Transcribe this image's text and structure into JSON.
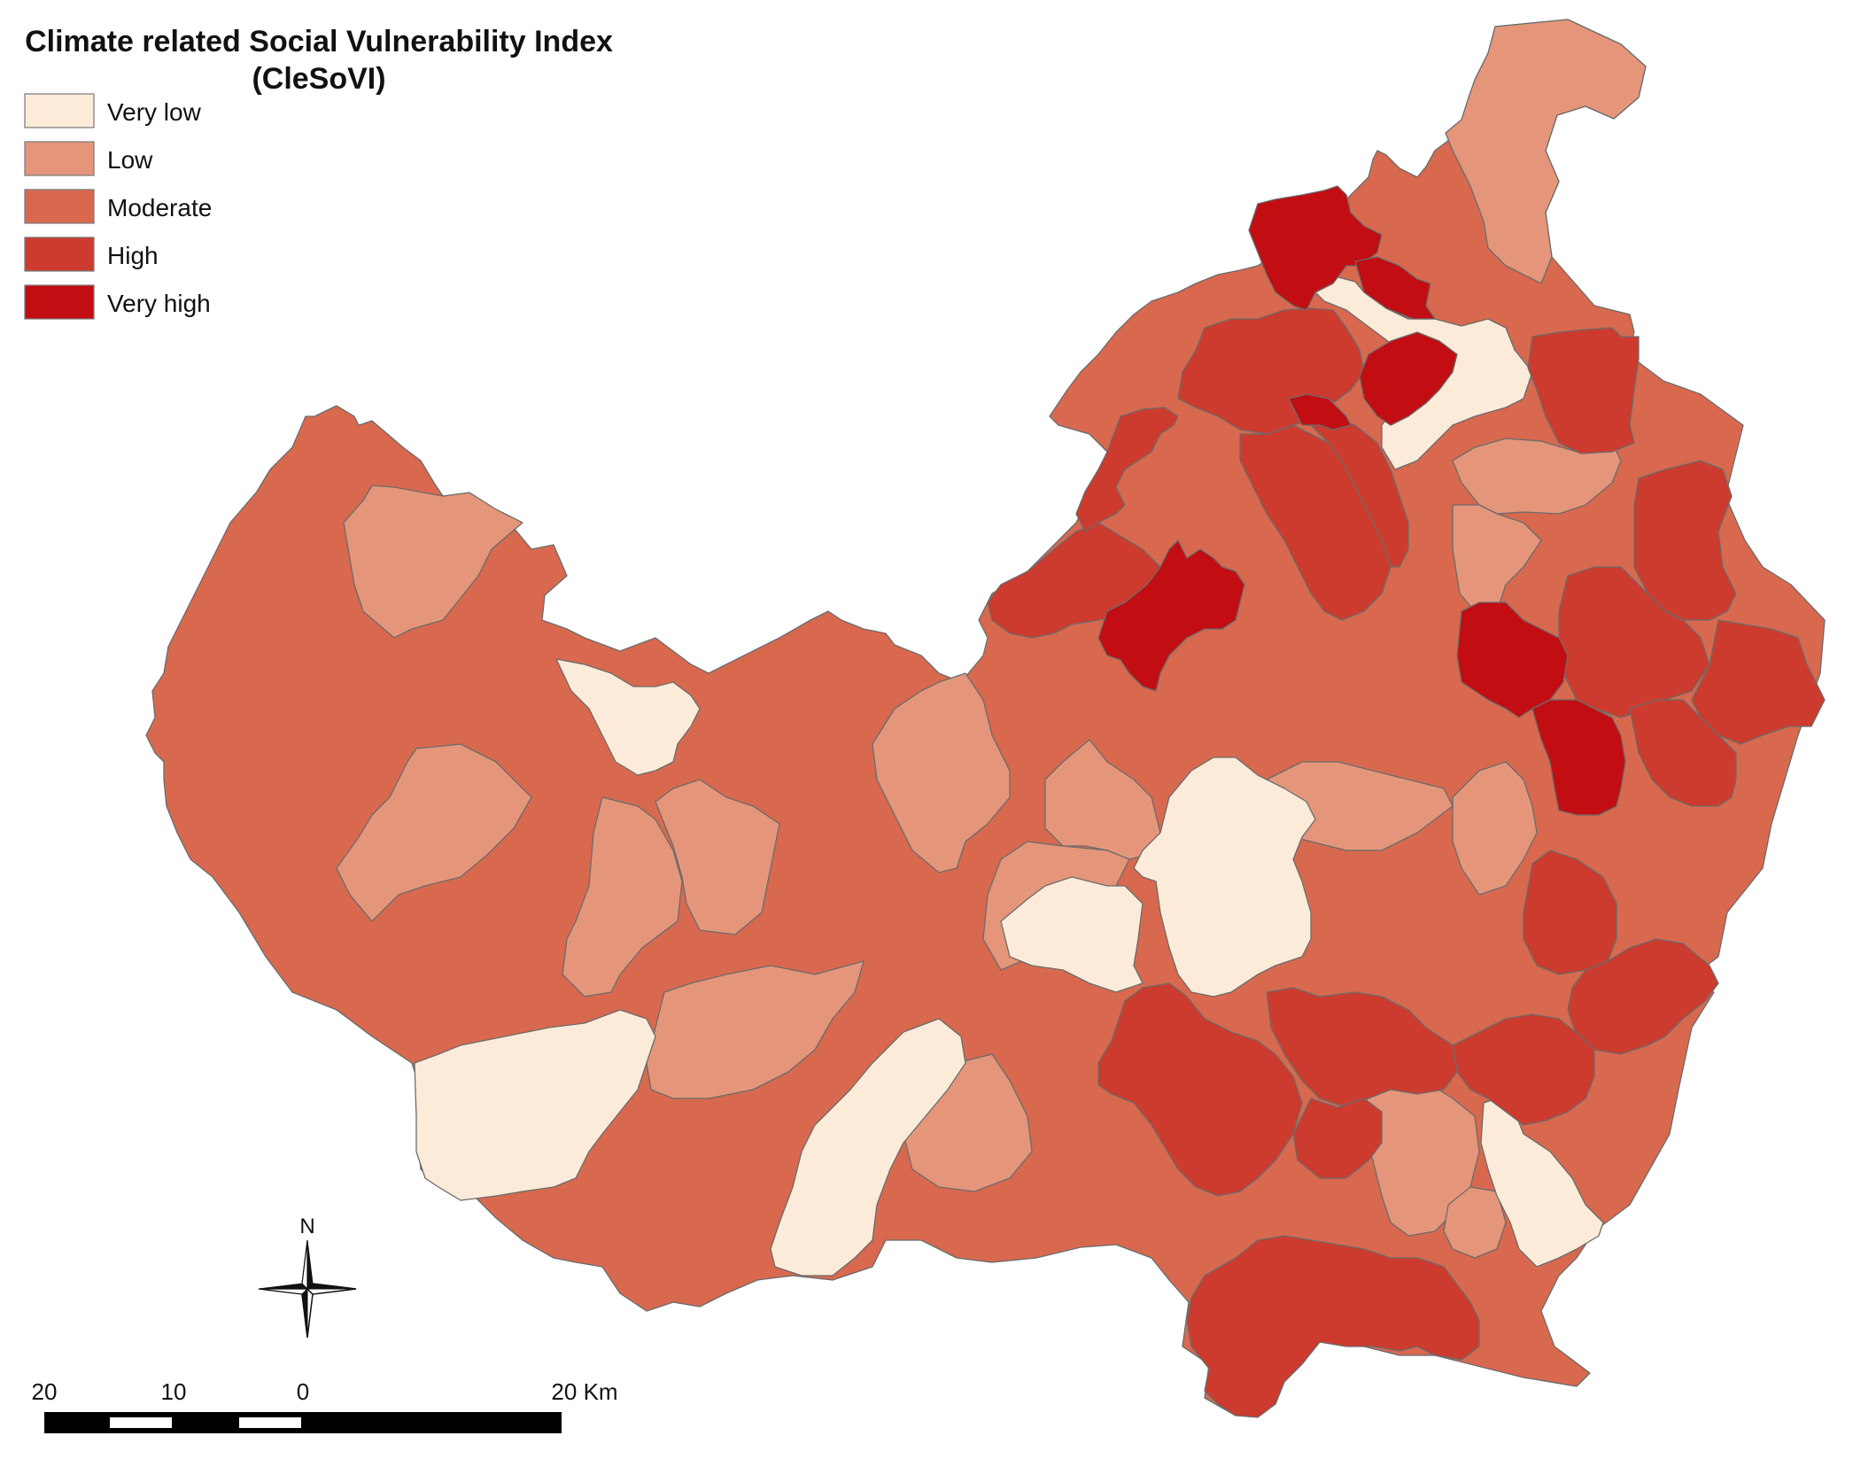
{
  "title_line1": "Climate related Social Vulnerability Index",
  "title_line2": "(CleSoVI)",
  "legend": [
    {
      "label": "Very low",
      "color": "#fdebd9"
    },
    {
      "label": "Low",
      "color": "#e5967a"
    },
    {
      "label": "Moderate",
      "color": "#d8694f"
    },
    {
      "label": "High",
      "color": "#cc3b2e"
    },
    {
      "label": "Very high",
      "color": "#c20d13"
    }
  ],
  "north_label": "N",
  "scale_labels": [
    "20",
    "10",
    "0",
    "20 Km"
  ],
  "icons": {
    "north_arrow": "compass-star-icon"
  }
}
